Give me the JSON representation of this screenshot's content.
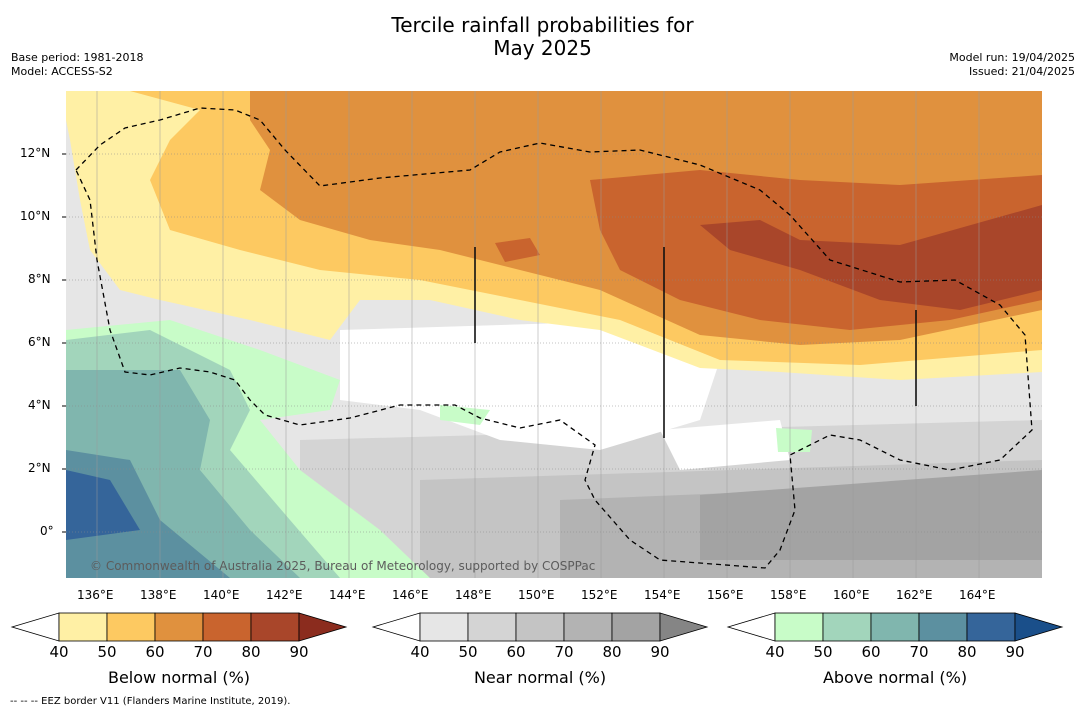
{
  "title_line1": "Tercile rainfall probabilities for",
  "title_line2": "May 2025",
  "meta_left": [
    "Base period: 1981-2018",
    "Model: ACCESS-S2"
  ],
  "meta_right": [
    "Model run: 19/04/2025",
    "Issued: 21/04/2025"
  ],
  "copyright": "© Commonwealth of Australia 2025, Bureau of Meteorology, supported by COSPPac",
  "lon_labels": [
    "136°E",
    "138°E",
    "140°E",
    "142°E",
    "144°E",
    "146°E",
    "148°E",
    "150°E",
    "152°E",
    "154°E",
    "156°E",
    "158°E",
    "160°E",
    "162°E",
    "164°E"
  ],
  "lat_labels": [
    "12°N",
    "10°N",
    "8°N",
    "6°N",
    "4°N",
    "2°N",
    "0°"
  ],
  "colorbars": [
    {
      "label": "Below normal (%)",
      "ticks": [
        "40",
        "50",
        "60",
        "70",
        "80",
        "90"
      ],
      "colors": [
        "#ffffff",
        "#fff0a5",
        "#fdc961",
        "#e0913e",
        "#c9642e",
        "#a9462a",
        "#8b2c1e"
      ]
    },
    {
      "label": "Near normal (%)",
      "ticks": [
        "40",
        "50",
        "60",
        "70",
        "80",
        "90"
      ],
      "colors": [
        "#ffffff",
        "#e6e6e6",
        "#d4d4d4",
        "#c4c4c4",
        "#b3b3b3",
        "#a3a3a3",
        "#858585"
      ]
    },
    {
      "label": "Above normal (%)",
      "ticks": [
        "40",
        "50",
        "60",
        "70",
        "80",
        "90"
      ],
      "colors": [
        "#ffffff",
        "#c8fcc8",
        "#a2d5bb",
        "#80b6ae",
        "#5c90a0",
        "#35659a",
        "#1a4f8a"
      ]
    }
  ],
  "footnote": "--  --  -- EEZ border V11 (Flanders Marine Institute, 2019)."
}
